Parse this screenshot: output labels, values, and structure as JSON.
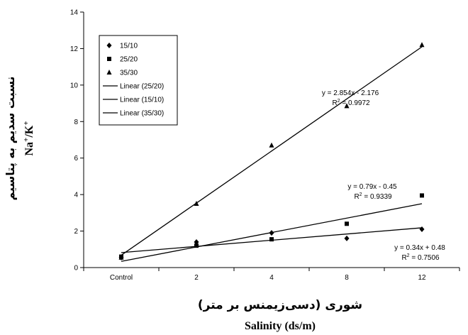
{
  "chart_data": {
    "type": "scatter",
    "categories": [
      "Control",
      "2",
      "4",
      "8",
      "12"
    ],
    "ylim": [
      0,
      14
    ],
    "yticks": [
      "0",
      "2",
      "4",
      "6",
      "8",
      "10",
      "12",
      "14"
    ],
    "xlabel_fa": "شوری (دسی‌زیمنس بر متر)",
    "xlabel_en": "Salinity (ds/m)",
    "ylabel_fa": "نسبت سدیم به پتاسیم",
    "ylabel_en": "Na+/K+",
    "grid": false,
    "legend_position": "top-left",
    "series": [
      {
        "name": "15/10",
        "marker": "diamond",
        "values": [
          0.55,
          1.4,
          1.9,
          1.6,
          2.1
        ]
      },
      {
        "name": "25/20",
        "marker": "square",
        "values": [
          0.6,
          1.2,
          1.55,
          2.4,
          3.95
        ]
      },
      {
        "name": "35/30",
        "marker": "triangle",
        "values": [
          0.55,
          3.5,
          6.7,
          8.85,
          12.2
        ]
      }
    ],
    "trendlines": [
      {
        "name": "Linear (25/20)",
        "of": "25/20",
        "slope": 0.79,
        "intercept": -0.45,
        "equation": "y = 0.79x - 0.45",
        "r2_prefix": "R",
        "r2_value": " = 0.9339"
      },
      {
        "name": "Linear (15/10)",
        "of": "15/10",
        "slope": 0.34,
        "intercept": 0.48,
        "equation": "y = 0.34x + 0.48",
        "r2_prefix": "R",
        "r2_value": " = 0.7506"
      },
      {
        "name": "Linear (35/30)",
        "of": "35/30",
        "slope": 2.854,
        "intercept": -2.176,
        "equation": "y = 2.854x - 2.176",
        "r2_prefix": "R",
        "r2_value": " = 0.9972"
      }
    ]
  },
  "legend": {
    "items": [
      "15/10",
      "25/20",
      "35/30",
      "Linear (25/20)",
      "Linear (15/10)",
      "Linear (35/30)"
    ]
  }
}
